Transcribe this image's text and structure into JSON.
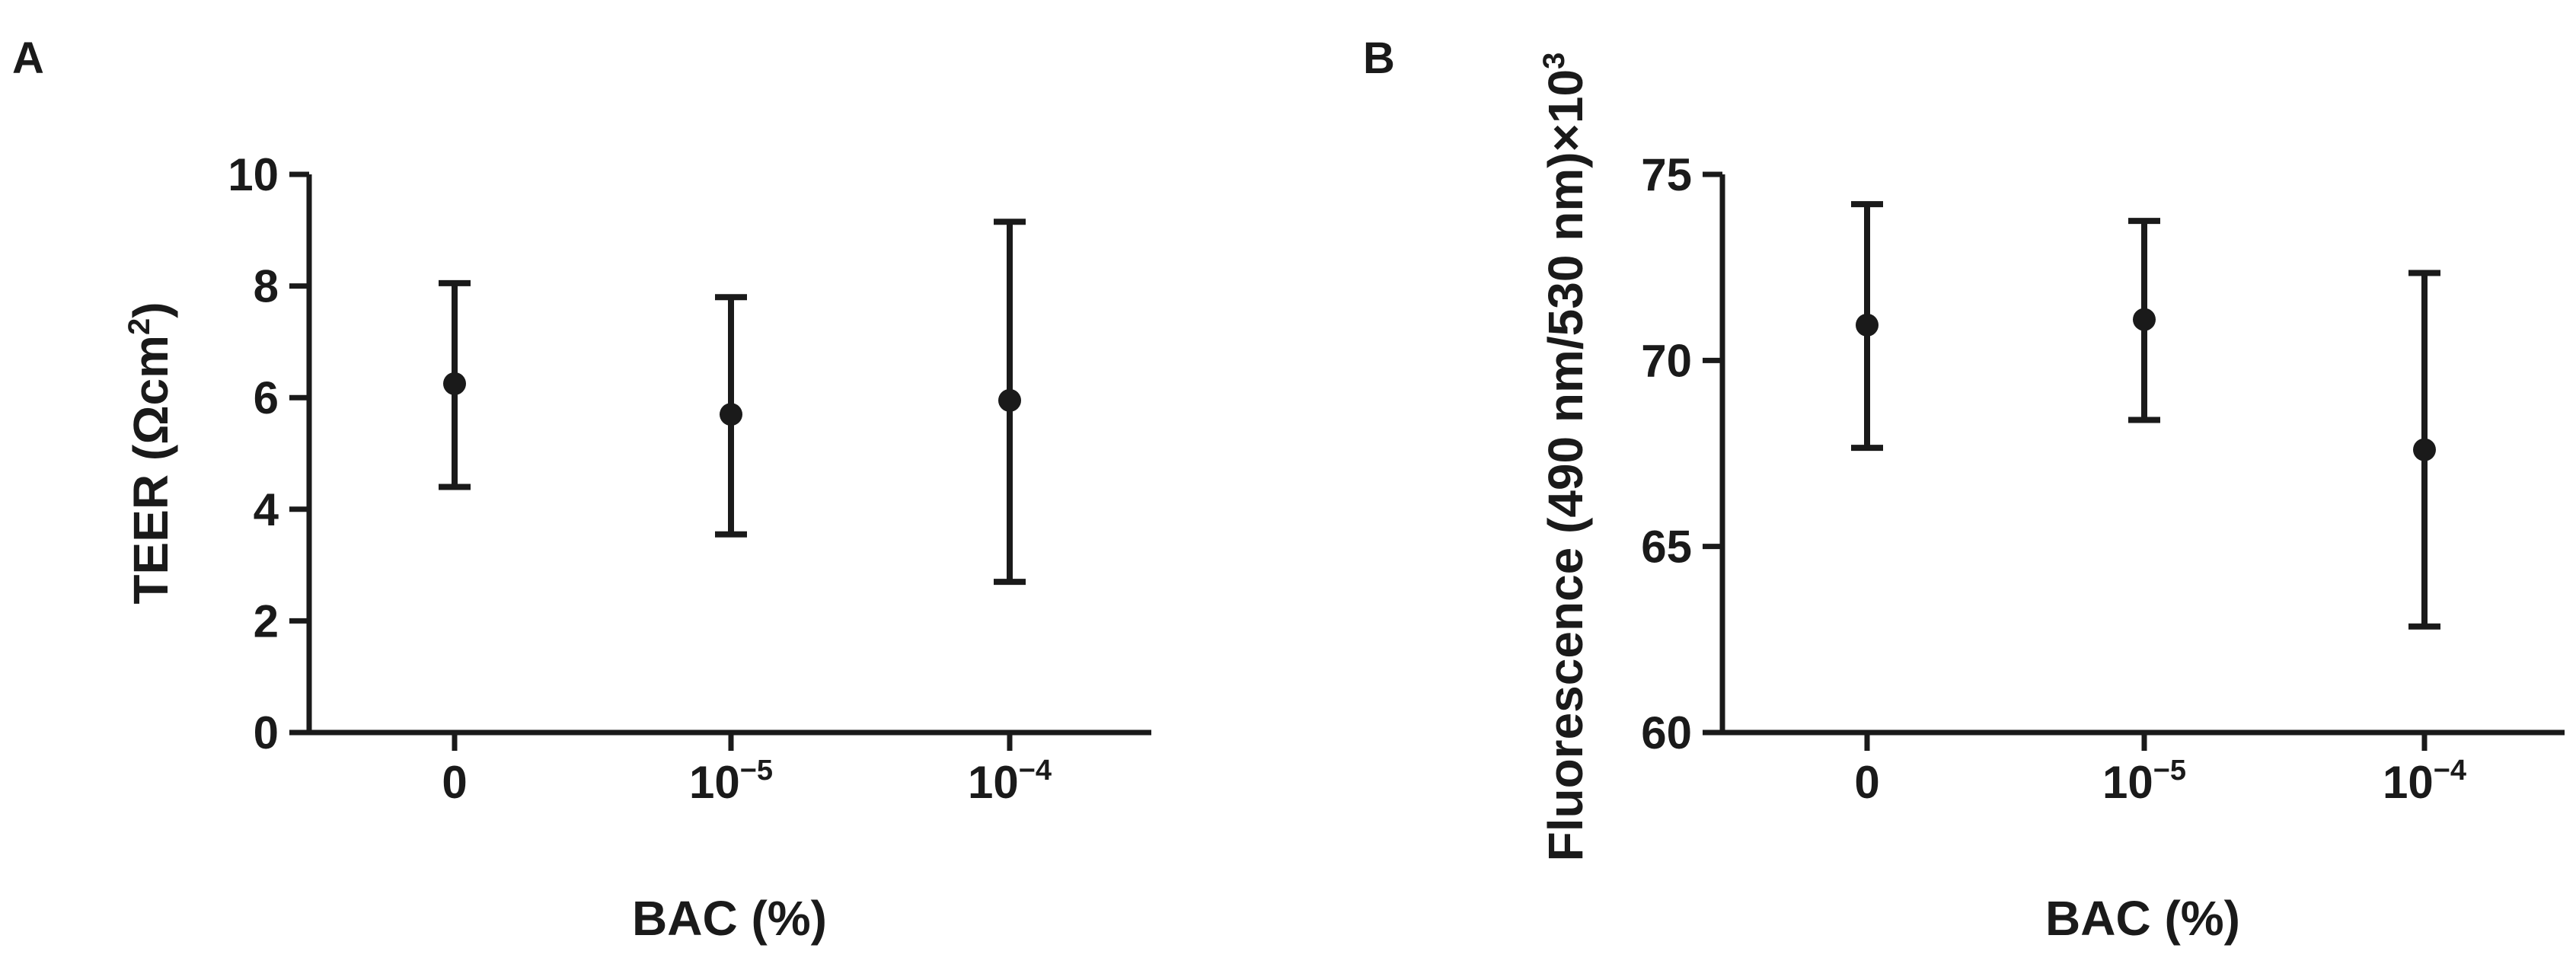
{
  "figure": {
    "ink_color": "#1a1a1a"
  },
  "chart_data": [
    {
      "panel_label": "A",
      "type": "scatter",
      "style": "mean-with-error-bars",
      "categories": [
        {
          "base": "0",
          "exp": ""
        },
        {
          "base": "10",
          "exp": "−5"
        },
        {
          "base": "10",
          "exp": "−4"
        }
      ],
      "xlabel": "BAC (%)",
      "ylabel": {
        "text": "TEER (Ωcm",
        "sup": "2",
        "tail": ")"
      },
      "ylim": [
        0,
        10
      ],
      "yticks": [
        "0",
        "2",
        "4",
        "6",
        "8",
        "10"
      ],
      "series": [
        {
          "values": [
            6.25,
            5.7,
            5.95
          ],
          "err_low": [
            4.4,
            3.55,
            2.7
          ],
          "err_high": [
            8.05,
            7.8,
            9.15
          ]
        }
      ],
      "grid": false,
      "legend": "none"
    },
    {
      "panel_label": "B",
      "type": "scatter",
      "style": "mean-with-error-bars",
      "categories": [
        {
          "base": "0",
          "exp": ""
        },
        {
          "base": "10",
          "exp": "−5"
        },
        {
          "base": "10",
          "exp": "−4"
        }
      ],
      "xlabel": "BAC (%)",
      "ylabel": {
        "text": "Fluorescence (490 nm/530 nm)×10",
        "sup": "3",
        "tail": ""
      },
      "ylim": [
        60,
        75
      ],
      "yticks": [
        "60",
        "65",
        "70",
        "75"
      ],
      "series": [
        {
          "values": [
            70.95,
            71.1,
            67.6
          ],
          "err_low": [
            67.65,
            68.4,
            62.85
          ],
          "err_high": [
            74.2,
            73.75,
            72.35
          ]
        }
      ],
      "grid": false,
      "legend": "none"
    }
  ]
}
